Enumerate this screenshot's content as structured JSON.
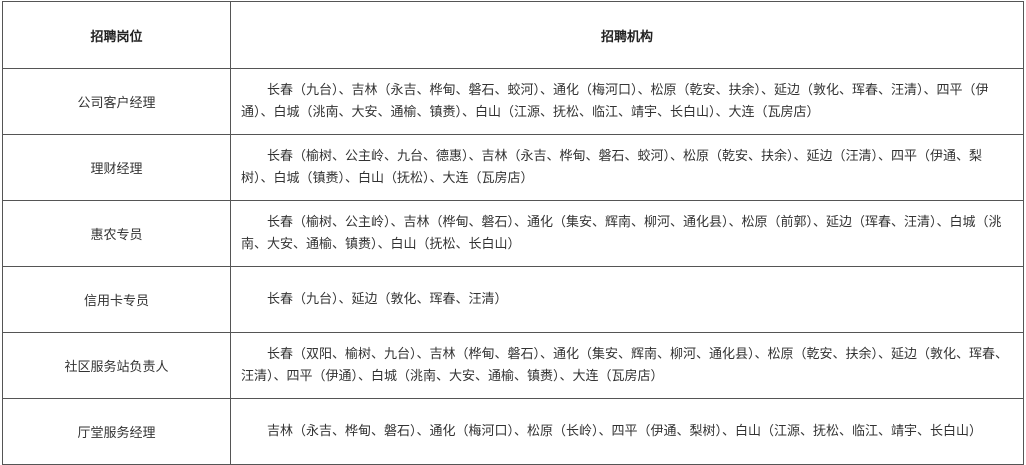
{
  "table": {
    "headers": [
      "招聘岗位",
      "招聘机构"
    ],
    "rows": [
      {
        "position": "公司客户经理",
        "institutions": "长春（九台）、吉林（永吉、桦甸、磐石、蛟河）、通化（梅河口）、松原（乾安、扶余）、延边（敦化、珲春、汪清）、四平（伊通）、白城（洮南、大安、通榆、镇赉）、白山（江源、抚松、临江、靖宇、长白山）、大连（瓦房店）"
      },
      {
        "position": "理财经理",
        "institutions": "长春（榆树、公主岭、九台、德惠）、吉林（永吉、桦甸、磐石、蛟河）、松原（乾安、扶余）、延边（汪清）、四平（伊通、梨树）、白城（镇赉）、白山（抚松）、大连（瓦房店）"
      },
      {
        "position": "惠农专员",
        "institutions": "长春（榆树、公主岭）、吉林（桦甸、磐石）、通化（集安、辉南、柳河、通化县）、松原（前郭）、延边（珲春、汪清）、白城（洮南、大安、通榆、镇赉）、白山（抚松、长白山）"
      },
      {
        "position": "信用卡专员",
        "institutions": "长春（九台）、延边（敦化、珲春、汪清）"
      },
      {
        "position": "社区服务站负责人",
        "institutions": "长春（双阳、榆树、九台）、吉林（桦甸、磐石）、通化（集安、辉南、柳河、通化县）、松原（乾安、扶余）、延边（敦化、珲春、汪清）、四平（伊通）、白城（洮南、大安、通榆、镇赉）、大连（瓦房店）"
      },
      {
        "position": "厅堂服务经理",
        "institutions": "吉林（永吉、桦甸、磐石）、通化（梅河口）、松原（长岭）、四平（伊通、梨树）、白山（江源、抚松、临江、靖宇、长白山）"
      }
    ]
  }
}
